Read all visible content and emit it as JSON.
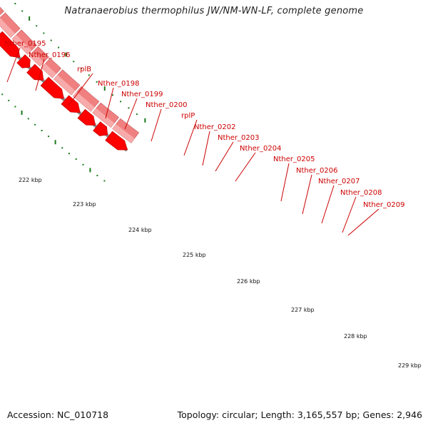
{
  "title": "Natranaerobius thermophilus JW/NM-WN-LF, complete genome",
  "accession_text": "Accession: NC_010718",
  "summary_text": "Topology: circular; Length: 3,165,557 bp; Genes: 2,946",
  "colors": {
    "gene_label": "#cc0000",
    "cds_arrow": "#ff0000",
    "cds_arrow_dark": "#bb0000",
    "gene_band": "#f08080",
    "gene_band_light": "#f8aaaa",
    "backbone": "#8c8c8c",
    "gc_dots": "#1a7a1a"
  },
  "gene_labels": [
    "Nther_0195",
    "Nther_0196",
    "rplB",
    "Nther_0198",
    "Nther_0199",
    "Nther_0200",
    "rplP",
    "Nther_0202",
    "Nther_0203",
    "Nther_0204",
    "Nther_0205",
    "Nther_0206",
    "Nther_0207",
    "Nther_0208",
    "Nther_0209"
  ],
  "scale_labels": [
    "222 kbp",
    "223 kbp",
    "224 kbp",
    "225 kbp",
    "226 kbp",
    "227 kbp",
    "228 kbp",
    "229 kbp"
  ]
}
